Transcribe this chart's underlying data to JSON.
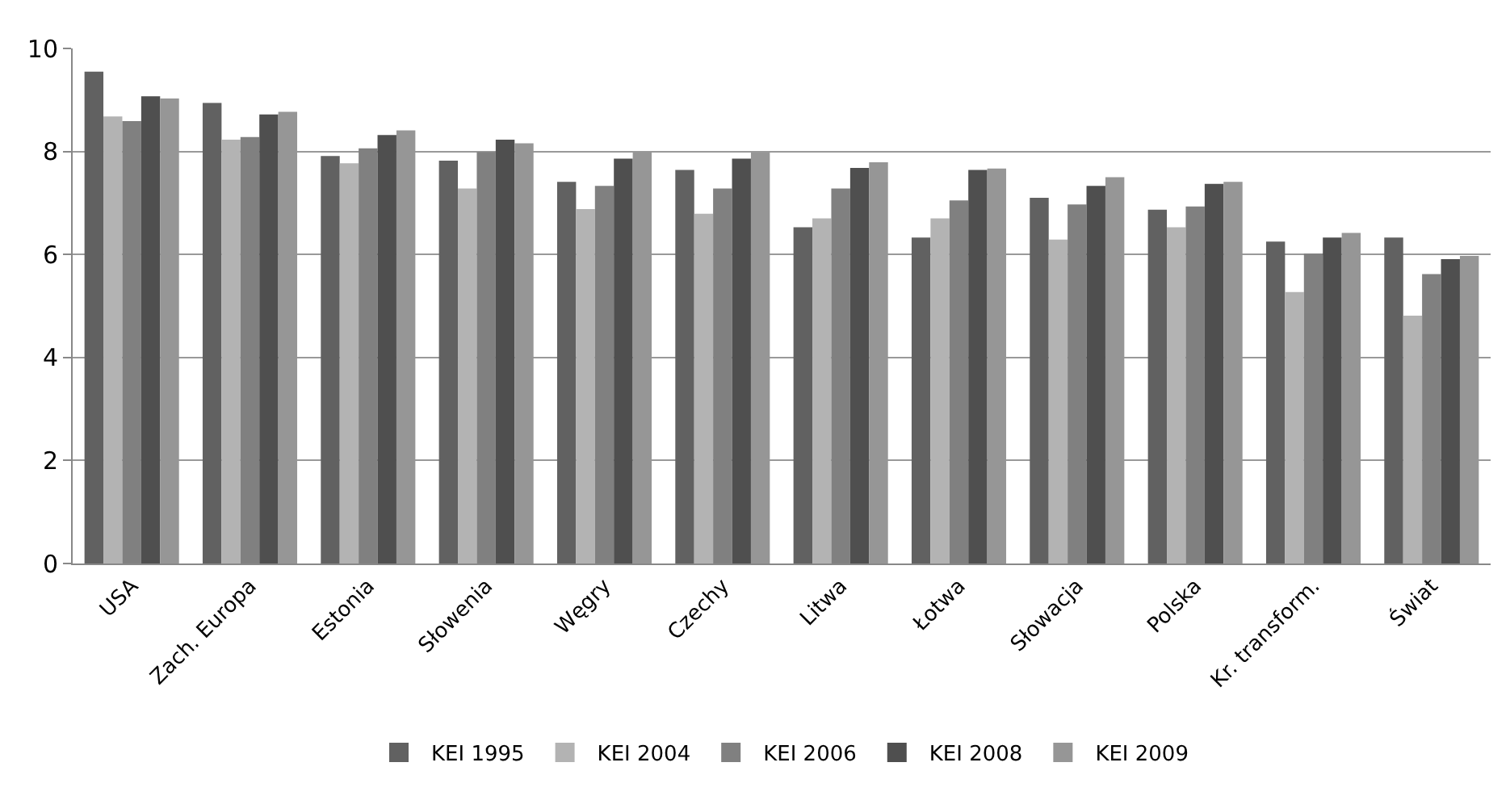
{
  "chart_data": {
    "type": "bar",
    "categories": [
      "USA",
      "Zach. Europa",
      "Estonia",
      "Słowenia",
      "Węgry",
      "Czechy",
      "Litwa",
      "Łotwa",
      "Słowacja",
      "Polska",
      "Kr. transform.",
      "Świat"
    ],
    "series": [
      {
        "name": "KEI 1995",
        "color": "#616161",
        "values": [
          9.55,
          8.94,
          7.91,
          7.82,
          7.41,
          7.64,
          6.53,
          6.33,
          7.1,
          6.87,
          6.25,
          6.33
        ]
      },
      {
        "name": "KEI 2004",
        "color": "#b3b3b3",
        "values": [
          8.68,
          8.23,
          7.77,
          7.28,
          6.88,
          6.79,
          6.7,
          6.7,
          6.29,
          6.53,
          5.27,
          4.81
        ]
      },
      {
        "name": "KEI 2006",
        "color": "#808080",
        "values": [
          8.59,
          8.28,
          8.06,
          7.99,
          7.33,
          7.28,
          7.28,
          7.05,
          6.97,
          6.93,
          6.02,
          5.62
        ]
      },
      {
        "name": "KEI 2008",
        "color": "#4f4f4f",
        "values": [
          9.07,
          8.72,
          8.32,
          8.23,
          7.86,
          7.86,
          7.68,
          7.64,
          7.33,
          7.37,
          6.33,
          5.91
        ]
      },
      {
        "name": "KEI 2009",
        "color": "#969696",
        "values": [
          9.03,
          8.77,
          8.41,
          8.16,
          7.99,
          7.98,
          7.79,
          7.67,
          7.5,
          7.41,
          6.42,
          5.97
        ]
      }
    ],
    "ylim": [
      0,
      10
    ],
    "yticks": [
      0,
      2,
      4,
      6,
      8,
      10
    ],
    "grid": "y",
    "legend": "bottom"
  }
}
